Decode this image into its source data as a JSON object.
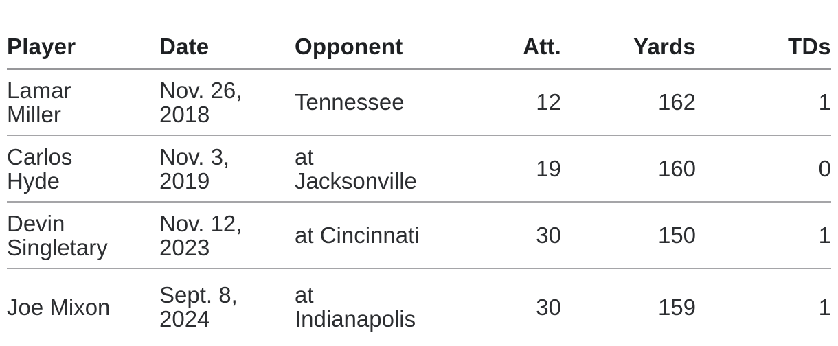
{
  "table": {
    "headers": {
      "player": "Player",
      "date": "Date",
      "opponent": "Opponent",
      "att": "Att.",
      "yards": "Yards",
      "tds": "TDs"
    },
    "rows": [
      {
        "player": "Lamar\nMiller",
        "date": "Nov. 26,\n2018",
        "opponent": "Tennessee",
        "att": "12",
        "yards": "162",
        "tds": "1"
      },
      {
        "player": "Carlos\nHyde",
        "date": "Nov. 3,\n2019",
        "opponent": "at\nJacksonville",
        "att": "19",
        "yards": "160",
        "tds": "0"
      },
      {
        "player": "Devin\nSingletary",
        "date": "Nov. 12,\n2023",
        "opponent": "at Cincinnati",
        "att": "30",
        "yards": "150",
        "tds": "1"
      },
      {
        "player": "Joe Mixon",
        "date": "Sept. 8,\n2024",
        "opponent": "at\nIndianapolis",
        "att": "30",
        "yards": "159",
        "tds": "1"
      }
    ]
  },
  "chart_data": {
    "type": "table",
    "title": "",
    "columns": [
      "Player",
      "Date",
      "Opponent",
      "Att.",
      "Yards",
      "TDs"
    ],
    "rows": [
      [
        "Lamar Miller",
        "Nov. 26, 2018",
        "Tennessee",
        12,
        162,
        1
      ],
      [
        "Carlos Hyde",
        "Nov. 3, 2019",
        "at Jacksonville",
        19,
        160,
        0
      ],
      [
        "Devin Singletary",
        "Nov. 12, 2023",
        "at Cincinnati",
        30,
        150,
        1
      ],
      [
        "Joe Mixon",
        "Sept. 8, 2024",
        "at Indianapolis",
        30,
        159,
        1
      ]
    ]
  },
  "colors": {
    "background": "#ffffff",
    "header_text": "#1e2023",
    "body_text": "#2c2e31",
    "header_rule": "#97979a",
    "row_rule": "#a5a5a8"
  }
}
